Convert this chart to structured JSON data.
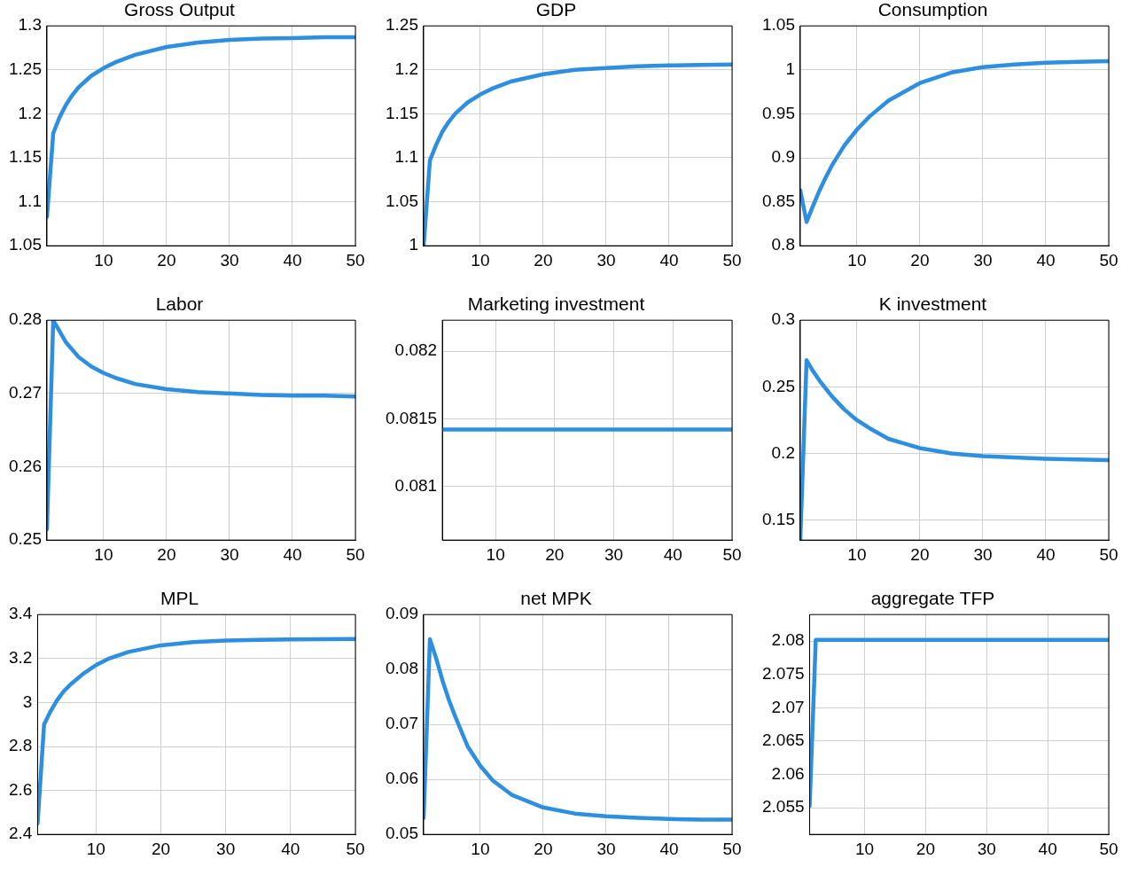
{
  "chart_data": [
    {
      "type": "line",
      "title": "Gross Output",
      "x": [
        1,
        2,
        3,
        4,
        5,
        6,
        8,
        10,
        12,
        15,
        20,
        25,
        30,
        35,
        40,
        45,
        50
      ],
      "values": [
        1.083,
        1.178,
        1.196,
        1.21,
        1.221,
        1.23,
        1.243,
        1.252,
        1.259,
        1.267,
        1.276,
        1.281,
        1.284,
        1.2855,
        1.286,
        1.287,
        1.287
      ],
      "color": "#2e8fe0",
      "xlim": [
        1,
        50
      ],
      "xticks": [
        10,
        20,
        30,
        40,
        50
      ],
      "ylim": [
        1.05,
        1.3
      ],
      "yticks": [
        1.05,
        1.1,
        1.15,
        1.2,
        1.25,
        1.3
      ],
      "grid": true
    },
    {
      "type": "line",
      "title": "GDP",
      "x": [
        1,
        2,
        3,
        4,
        5,
        6,
        8,
        10,
        12,
        15,
        20,
        25,
        30,
        35,
        40,
        45,
        50
      ],
      "values": [
        1.0,
        1.097,
        1.115,
        1.13,
        1.141,
        1.15,
        1.163,
        1.172,
        1.179,
        1.187,
        1.195,
        1.2,
        1.202,
        1.204,
        1.205,
        1.2055,
        1.206
      ],
      "color": "#2e8fe0",
      "xlim": [
        1,
        50
      ],
      "xticks": [
        10,
        20,
        30,
        40,
        50
      ],
      "ylim": [
        1,
        1.25
      ],
      "yticks": [
        1,
        1.05,
        1.1,
        1.15,
        1.2,
        1.25
      ],
      "grid": true
    },
    {
      "type": "line",
      "title": "Consumption",
      "x": [
        1,
        2,
        3,
        4,
        5,
        6,
        8,
        10,
        12,
        15,
        20,
        25,
        30,
        35,
        40,
        45,
        50
      ],
      "values": [
        0.863,
        0.827,
        0.845,
        0.862,
        0.877,
        0.891,
        0.914,
        0.932,
        0.947,
        0.965,
        0.985,
        0.997,
        1.003,
        1.006,
        1.008,
        1.009,
        1.01
      ],
      "color": "#2e8fe0",
      "xlim": [
        1,
        50
      ],
      "xticks": [
        10,
        20,
        30,
        40,
        50
      ],
      "ylim": [
        0.8,
        1.05
      ],
      "yticks": [
        0.8,
        0.85,
        0.9,
        0.95,
        1,
        1.05
      ],
      "grid": true
    },
    {
      "type": "line",
      "title": "Labor",
      "x": [
        1,
        2,
        3,
        4,
        5,
        6,
        8,
        10,
        12,
        15,
        20,
        25,
        30,
        35,
        40,
        45,
        50
      ],
      "values": [
        0.2515,
        0.28,
        0.2785,
        0.277,
        0.276,
        0.275,
        0.2737,
        0.2728,
        0.2721,
        0.2713,
        0.2706,
        0.2702,
        0.27,
        0.2698,
        0.2697,
        0.2697,
        0.2696
      ],
      "color": "#2e8fe0",
      "xlim": [
        1,
        50
      ],
      "xticks": [
        10,
        20,
        30,
        40,
        50
      ],
      "ylim": [
        0.25,
        0.28
      ],
      "yticks": [
        0.25,
        0.26,
        0.27,
        0.28
      ],
      "grid": true
    },
    {
      "type": "line",
      "title": "Marketing investment",
      "x": [
        1,
        2,
        3,
        4,
        5,
        6,
        8,
        10,
        12,
        15,
        20,
        25,
        30,
        35,
        40,
        45,
        50
      ],
      "values": [
        0.08142,
        0.08142,
        0.08142,
        0.08142,
        0.08142,
        0.08142,
        0.08142,
        0.08142,
        0.08142,
        0.08142,
        0.08142,
        0.08142,
        0.08142,
        0.08142,
        0.08142,
        0.08142,
        0.08142
      ],
      "color": "#2e8fe0",
      "xlim": [
        1,
        50
      ],
      "xticks": [
        10,
        20,
        30,
        40,
        50
      ],
      "ylim": [
        0.0806,
        0.08223
      ],
      "yticks": [
        0.081,
        0.0815,
        0.082
      ],
      "grid": true
    },
    {
      "type": "line",
      "title": "K investment",
      "x": [
        1,
        2,
        3,
        4,
        5,
        6,
        8,
        10,
        12,
        15,
        20,
        25,
        30,
        35,
        40,
        45,
        50
      ],
      "values": [
        0.135,
        0.27,
        0.262,
        0.255,
        0.249,
        0.243,
        0.233,
        0.225,
        0.219,
        0.211,
        0.204,
        0.2,
        0.198,
        0.197,
        0.196,
        0.1955,
        0.195
      ],
      "color": "#2e8fe0",
      "xlim": [
        1,
        50
      ],
      "xticks": [
        10,
        20,
        30,
        40,
        50
      ],
      "ylim": [
        0.135,
        0.3
      ],
      "yticks": [
        0.15,
        0.2,
        0.25,
        0.3
      ],
      "grid": true
    },
    {
      "type": "line",
      "title": "MPL",
      "x": [
        1,
        2,
        3,
        4,
        5,
        6,
        8,
        10,
        12,
        15,
        20,
        25,
        30,
        35,
        40,
        45,
        50
      ],
      "values": [
        2.45,
        2.9,
        2.96,
        3.01,
        3.05,
        3.08,
        3.13,
        3.17,
        3.2,
        3.23,
        3.26,
        3.275,
        3.282,
        3.285,
        3.287,
        3.288,
        3.289
      ],
      "color": "#2e8fe0",
      "xlim": [
        1,
        50
      ],
      "xticks": [
        10,
        20,
        30,
        40,
        50
      ],
      "ylim": [
        2.4,
        3.4
      ],
      "yticks": [
        2.4,
        2.6,
        2.8,
        3,
        3.2,
        3.4
      ],
      "grid": true
    },
    {
      "type": "line",
      "title": "net MPK",
      "x": [
        1,
        2,
        3,
        4,
        5,
        6,
        8,
        10,
        12,
        15,
        20,
        25,
        30,
        35,
        40,
        45,
        50
      ],
      "values": [
        0.053,
        0.0855,
        0.082,
        0.078,
        0.0745,
        0.0715,
        0.066,
        0.0625,
        0.0598,
        0.0572,
        0.0549,
        0.0538,
        0.0533,
        0.053,
        0.0528,
        0.0527,
        0.0527
      ],
      "color": "#2e8fe0",
      "xlim": [
        1,
        50
      ],
      "xticks": [
        10,
        20,
        30,
        40,
        50
      ],
      "ylim": [
        0.05,
        0.09
      ],
      "yticks": [
        0.05,
        0.06,
        0.07,
        0.08,
        0.09
      ],
      "grid": true
    },
    {
      "type": "line",
      "title": "aggregate TFP",
      "x": [
        1,
        2,
        3,
        4,
        5,
        6,
        8,
        10,
        12,
        15,
        20,
        25,
        30,
        35,
        40,
        45,
        50
      ],
      "values": [
        2.0553,
        2.0802,
        2.0802,
        2.0802,
        2.0802,
        2.0802,
        2.0802,
        2.0802,
        2.0802,
        2.0802,
        2.0802,
        2.0802,
        2.0802,
        2.0802,
        2.0802,
        2.0802,
        2.0802
      ],
      "color": "#2e8fe0",
      "xlim": [
        1,
        50
      ],
      "xticks": [
        10,
        20,
        30,
        40,
        50
      ],
      "ylim": [
        2.051,
        2.084
      ],
      "yticks": [
        2.055,
        2.06,
        2.065,
        2.07,
        2.075,
        2.08
      ],
      "grid": true
    }
  ]
}
